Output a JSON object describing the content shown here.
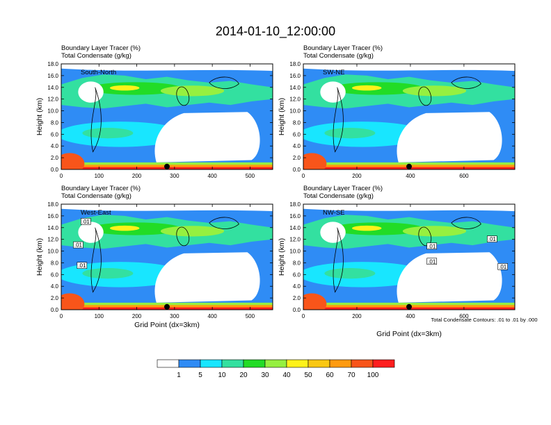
{
  "figure": {
    "title": "2014-01-10_12:00:00",
    "colorbar": {
      "colors": [
        "#ffffff",
        "#2f8cf5",
        "#18e6ff",
        "#33e0a0",
        "#22dc26",
        "#96f040",
        "#fff21a",
        "#fac812",
        "#ff9b0f",
        "#f8551a",
        "#ff1e1e"
      ],
      "labels": [
        "1",
        "5",
        "10",
        "20",
        "30",
        "40",
        "50",
        "60",
        "70",
        "100"
      ]
    },
    "contour_note": "Total Condensate Contours: .01 to .01 by .000",
    "xlabel": "Grid Point (dx=3km)",
    "ylabel": "Height (km)"
  },
  "chart_data": [
    {
      "type": "heatmap",
      "cross_section": "South-North",
      "titles": [
        "Boundary Layer Tracer   (%)",
        "Total Condensate   (g/kg)"
      ],
      "ylabel": "Height (km)",
      "xlabel": "",
      "xlim": [
        0,
        560
      ],
      "ylim": [
        0,
        18
      ],
      "xticks": [
        "0",
        "100",
        "200",
        "300",
        "400",
        "500"
      ],
      "yticks": [
        "0.0",
        "2.0",
        "4.0",
        "6.0",
        "8.0",
        "10.0",
        "12.0",
        "14.0",
        "16.0",
        "18.0"
      ],
      "marker_x": 280,
      "contour_labels": []
    },
    {
      "type": "heatmap",
      "cross_section": "SW-NE",
      "titles": [
        "Boundary Layer Tracer   (%)",
        "Total Condensate   (g/kg)"
      ],
      "ylabel": "Height (km)",
      "xlabel": "",
      "xlim": [
        0,
        790
      ],
      "ylim": [
        0,
        18
      ],
      "xticks": [
        "0",
        "200",
        "400",
        "600"
      ],
      "yticks": [
        "0.0",
        "2.0",
        "4.0",
        "6.0",
        "8.0",
        "10.0",
        "12.0",
        "14.0",
        "16.0",
        "18.0"
      ],
      "marker_x": 395,
      "contour_labels": []
    },
    {
      "type": "heatmap",
      "cross_section": "West-East",
      "titles": [
        "Boundary Layer Tracer   (%)",
        "Total Condensate   (g/kg)"
      ],
      "ylabel": "Height (km)",
      "xlabel": "Grid Point (dx=3km)",
      "xlim": [
        0,
        560
      ],
      "ylim": [
        0,
        18
      ],
      "xticks": [
        "0",
        "100",
        "200",
        "300",
        "400",
        "500"
      ],
      "yticks": [
        "0.0",
        "2.0",
        "4.0",
        "6.0",
        "8.0",
        "10.0",
        "12.0",
        "14.0",
        "16.0",
        "18.0"
      ],
      "marker_x": 280,
      "contour_labels": [
        {
          "text": ".01",
          "x": 65,
          "y": 15
        },
        {
          "text": ".01",
          "x": 45,
          "y": 11
        },
        {
          "text": ".01",
          "x": 55,
          "y": 7.5
        }
      ]
    },
    {
      "type": "heatmap",
      "cross_section": "NW-SE",
      "titles": [
        "Boundary Layer Tracer   (%)",
        "Total Condensate   (g/kg)"
      ],
      "ylabel": "Height (km)",
      "xlabel": "Grid Point (dx=3km)",
      "xlim": [
        0,
        790
      ],
      "ylim": [
        0,
        18
      ],
      "xticks": [
        "0",
        "200",
        "400",
        "600"
      ],
      "yticks": [
        "0.0",
        "2.0",
        "4.0",
        "6.0",
        "8.0",
        "10.0",
        "12.0",
        "14.0",
        "16.0",
        "18.0"
      ],
      "marker_x": 395,
      "contour_labels": [
        {
          "text": ".01",
          "x": 705,
          "y": 12
        },
        {
          "text": ".01",
          "x": 480,
          "y": 10.8
        },
        {
          "text": ".01",
          "x": 480,
          "y": 8.2
        },
        {
          "text": ".01",
          "x": 745,
          "y": 7.3
        }
      ]
    }
  ]
}
